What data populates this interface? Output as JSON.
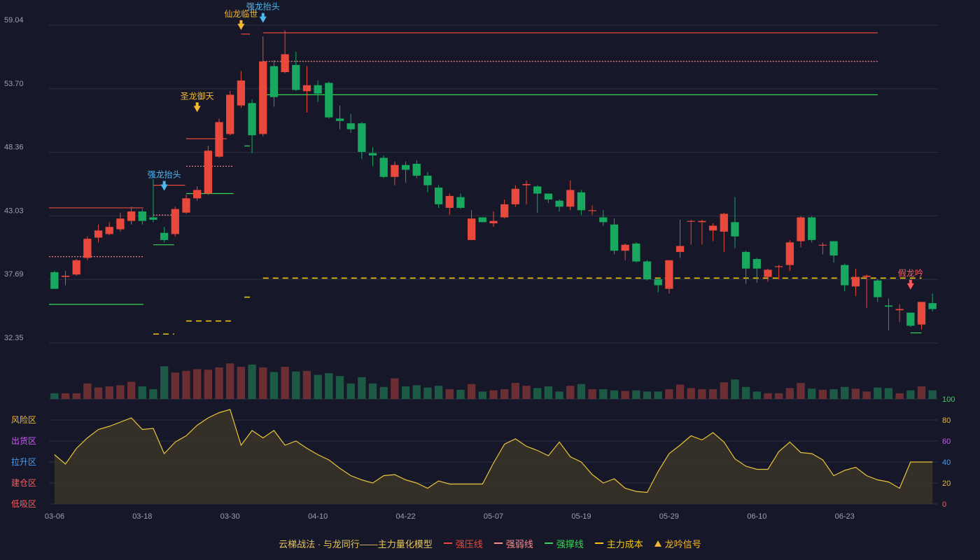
{
  "chart_data": {
    "type": "candlestick",
    "title": "",
    "colors": {
      "up": "#e8493c",
      "down": "#18a860",
      "resist": "#e8493c",
      "weak": "#ff8a8a",
      "support": "#39d353",
      "cost": "#f2c40f",
      "signal_gold": "#f2b632",
      "signal_blue": "#4cb8f0",
      "signal_red": "#ff5a5a",
      "oscillator": "#e8c43a"
    },
    "price_axis": {
      "ticks": [
        "59.04",
        "53.70",
        "48.36",
        "43.03",
        "37.69",
        "32.35"
      ],
      "ylim": [
        32.35,
        59.04
      ]
    },
    "x_ticks": [
      {
        "index": 0,
        "label": "03-06"
      },
      {
        "index": 8,
        "label": "03-18"
      },
      {
        "index": 16,
        "label": "03-30"
      },
      {
        "index": 24,
        "label": "04-10"
      },
      {
        "index": 32,
        "label": "04-22"
      },
      {
        "index": 40,
        "label": "05-07"
      },
      {
        "index": 48,
        "label": "05-19"
      },
      {
        "index": 56,
        "label": "05-29"
      },
      {
        "index": 64,
        "label": "06-10"
      },
      {
        "index": 72,
        "label": "06-23"
      }
    ],
    "candles": [
      [
        38.3,
        36.9,
        38.4,
        36.9
      ],
      [
        37.9,
        38.0,
        38.4,
        37.2
      ],
      [
        38.1,
        39.3,
        39.4,
        38.0
      ],
      [
        39.5,
        41.1,
        41.3,
        39.3
      ],
      [
        41.2,
        41.8,
        42.3,
        40.8
      ],
      [
        41.5,
        42.1,
        42.5,
        41.4
      ],
      [
        41.9,
        42.8,
        43.3,
        41.7
      ],
      [
        42.6,
        43.4,
        43.8,
        42.3
      ],
      [
        43.4,
        42.6,
        43.6,
        42.3
      ],
      [
        42.9,
        42.7,
        46.1,
        42.5
      ],
      [
        41.6,
        41.0,
        42.1,
        40.8
      ],
      [
        41.5,
        43.6,
        43.8,
        41.3
      ],
      [
        43.3,
        44.5,
        44.8,
        43.2
      ],
      [
        44.5,
        45.2,
        45.5,
        44.3
      ],
      [
        44.9,
        48.5,
        48.9,
        44.8
      ],
      [
        48.0,
        50.9,
        51.2,
        47.9
      ],
      [
        49.9,
        53.2,
        53.5,
        49.8
      ],
      [
        52.3,
        54.4,
        55.2,
        52.1
      ],
      [
        52.5,
        49.8,
        52.8,
        48.3
      ],
      [
        49.9,
        56.0,
        58.1,
        49.7
      ],
      [
        55.6,
        53.0,
        56.1,
        52.2
      ],
      [
        55.1,
        56.6,
        58.6,
        55.0
      ],
      [
        55.7,
        53.6,
        56.8,
        53.5
      ],
      [
        53.5,
        54.0,
        55.6,
        51.7
      ],
      [
        54.0,
        53.3,
        54.4,
        52.6
      ],
      [
        54.2,
        51.3,
        54.3,
        51.2
      ],
      [
        51.2,
        51.0,
        52.3,
        50.3
      ],
      [
        50.8,
        50.3,
        51.6,
        50.0
      ],
      [
        50.8,
        48.4,
        50.9,
        47.8
      ],
      [
        48.3,
        48.1,
        48.8,
        47.2
      ],
      [
        47.9,
        46.3,
        48.1,
        46.2
      ],
      [
        46.3,
        47.3,
        47.6,
        45.6
      ],
      [
        47.3,
        46.9,
        47.6,
        45.8
      ],
      [
        47.4,
        46.4,
        47.7,
        46.2
      ],
      [
        46.4,
        45.6,
        46.7,
        45.0
      ],
      [
        45.4,
        44.0,
        45.6,
        43.7
      ],
      [
        43.7,
        44.7,
        44.9,
        43.1
      ],
      [
        44.6,
        43.7,
        44.9,
        43.6
      ],
      [
        41.0,
        42.8,
        43.5,
        41.0
      ],
      [
        42.9,
        42.5,
        42.8,
        42.5
      ],
      [
        42.4,
        42.6,
        43.4,
        42.1
      ],
      [
        42.9,
        44.0,
        44.4,
        42.8
      ],
      [
        44.0,
        45.3,
        45.6,
        43.8
      ],
      [
        45.6,
        45.7,
        46.0,
        44.0
      ],
      [
        45.5,
        44.9,
        45.6,
        43.3
      ],
      [
        44.9,
        44.4,
        44.9,
        44.1
      ],
      [
        44.3,
        43.8,
        44.4,
        43.4
      ],
      [
        43.8,
        45.2,
        46.0,
        43.5
      ],
      [
        45.0,
        43.5,
        45.2,
        43.1
      ],
      [
        43.5,
        43.5,
        43.9,
        43.1
      ],
      [
        42.9,
        42.5,
        43.5,
        42.2
      ],
      [
        42.3,
        40.1,
        42.8,
        39.8
      ],
      [
        40.1,
        40.6,
        40.7,
        39.3
      ],
      [
        40.7,
        39.2,
        40.8,
        39.1
      ],
      [
        39.2,
        37.7,
        39.3,
        37.6
      ],
      [
        37.7,
        37.2,
        37.8,
        36.6
      ],
      [
        36.9,
        39.3,
        39.3,
        36.5
      ],
      [
        40.0,
        40.5,
        42.7,
        39.5
      ],
      [
        42.6,
        42.6,
        42.7,
        40.6
      ],
      [
        42.5,
        42.6,
        42.7,
        40.6
      ],
      [
        41.8,
        42.2,
        42.4,
        40.9
      ],
      [
        41.7,
        43.2,
        43.3,
        40.0
      ],
      [
        42.5,
        41.3,
        44.6,
        40.3
      ],
      [
        40.0,
        38.6,
        40.1,
        37.3
      ],
      [
        39.4,
        38.6,
        39.5,
        37.4
      ],
      [
        37.9,
        38.5,
        38.6,
        37.5
      ],
      [
        38.8,
        38.8,
        38.9,
        37.7
      ],
      [
        38.9,
        40.8,
        41.0,
        38.4
      ],
      [
        40.9,
        42.9,
        43.0,
        40.4
      ],
      [
        42.9,
        41.0,
        43.0,
        40.8
      ],
      [
        40.6,
        40.6,
        40.8,
        39.8
      ],
      [
        40.9,
        39.7,
        40.9,
        39.1
      ],
      [
        38.9,
        37.2,
        39.0,
        36.7
      ],
      [
        37.1,
        37.9,
        38.6,
        36.3
      ],
      [
        37.9,
        38.0,
        38.1,
        35.3
      ],
      [
        37.6,
        36.2,
        37.7,
        35.8
      ],
      [
        35.5,
        35.4,
        36.1,
        33.4
      ],
      [
        35.1,
        35.2,
        35.6,
        34.1
      ],
      [
        34.9,
        33.8,
        34.9,
        33.7
      ],
      [
        33.9,
        35.8,
        35.8,
        33.5
      ],
      [
        35.7,
        35.2,
        36.5,
        35.0
      ]
    ],
    "volume": [
      10,
      10,
      10,
      27,
      20,
      22,
      24,
      30,
      22,
      17,
      57,
      46,
      49,
      52,
      51,
      55,
      62,
      56,
      60,
      55,
      47,
      56,
      48,
      49,
      42,
      45,
      40,
      27,
      38,
      27,
      21,
      36,
      22,
      24,
      20,
      23,
      17,
      16,
      26,
      13,
      15,
      17,
      28,
      23,
      19,
      22,
      13,
      23,
      26,
      17,
      17,
      15,
      14,
      15,
      13,
      13,
      17,
      25,
      19,
      17,
      17,
      29,
      34,
      21,
      13,
      10,
      10,
      19,
      28,
      18,
      16,
      17,
      21,
      18,
      13,
      20,
      19,
      10,
      15,
      22,
      15
    ],
    "oscillator": {
      "ylim": [
        0,
        100
      ],
      "ticks": [
        0,
        20,
        40,
        60,
        80,
        100
      ],
      "zones": [
        "风险区",
        "出货区",
        "拉升区",
        "建仓区",
        "低吸区"
      ],
      "values": [
        47,
        38,
        53,
        63,
        71,
        74,
        78,
        82,
        71,
        72,
        48,
        59,
        65,
        75,
        82,
        87,
        90,
        56,
        70,
        63,
        70,
        56,
        60,
        53,
        47,
        42,
        34,
        27,
        23,
        20,
        27,
        28,
        23,
        20,
        15,
        22,
        19,
        19,
        19,
        19,
        39,
        57,
        62,
        55,
        51,
        46,
        59,
        45,
        40,
        28,
        20,
        24,
        15,
        12,
        11,
        31,
        48,
        56,
        65,
        61,
        68,
        59,
        43,
        36,
        33,
        33,
        50,
        59,
        49,
        48,
        42,
        27,
        32,
        35,
        27,
        23,
        21,
        15,
        40,
        40,
        40
      ]
    },
    "lines": {
      "resist": [
        {
          "x0": 0,
          "x1": 8.6,
          "y": 43.7
        },
        {
          "x0": 9.5,
          "x1": 12.4,
          "y": 45.6
        },
        {
          "x0": 12.5,
          "x1": 16.2,
          "y": 49.5
        },
        {
          "x0": 17.5,
          "x1": 18.3,
          "y": 58.3
        },
        {
          "x0": 19.5,
          "x1": 75.5,
          "y": 58.4
        }
      ],
      "weak": [
        {
          "x0": 0,
          "x1": 8.6,
          "y": 39.6
        },
        {
          "x0": 9.5,
          "x1": 11.7,
          "y": 43.1
        },
        {
          "x0": 12.5,
          "x1": 16.8,
          "y": 47.2
        },
        {
          "x0": 19.5,
          "x1": 75.5,
          "y": 56.0
        }
      ],
      "support": [
        {
          "x0": 0,
          "x1": 8.6,
          "y": 35.6
        },
        {
          "x0": 9.5,
          "x1": 11.4,
          "y": 40.6
        },
        {
          "x0": 12.5,
          "x1": 16.8,
          "y": 44.9
        },
        {
          "x0": 17.8,
          "x1": 18.3,
          "y": 48.9
        },
        {
          "x0": 19.5,
          "x1": 75.5,
          "y": 53.2
        },
        {
          "x0": 78.5,
          "x1": 79.5,
          "y": 33.2
        }
      ],
      "cost": [
        {
          "x0": 9.5,
          "x1": 11.4,
          "y": 33.1
        },
        {
          "x0": 12.5,
          "x1": 16.8,
          "y": 34.2
        },
        {
          "x0": 17.8,
          "x1": 18.3,
          "y": 36.2
        },
        {
          "x0": 19.5,
          "x1": 79.5,
          "y": 37.8
        }
      ]
    },
    "signals": [
      {
        "index": 10,
        "label": "强龙抬头",
        "color": "#4cb8f0",
        "price": 44.9
      },
      {
        "index": 13,
        "label": "圣龙御天",
        "color": "#f2b632",
        "price": 51.5
      },
      {
        "index": 17,
        "label": "仙龙临世",
        "color": "#f2b632",
        "price": 58.4
      },
      {
        "index": 19,
        "label": "强龙抬头",
        "color": "#4cb8f0",
        "price": 59.0
      },
      {
        "index": 78,
        "label": "假龙吟",
        "color": "#ff5a5a",
        "price": 36.6
      }
    ]
  },
  "footer": {
    "title": "云梯战法 · 与龙同行——主力量化模型",
    "legend": [
      {
        "label": "强压线",
        "color": "#e8493c"
      },
      {
        "label": "强弱线",
        "color": "#ff8a8a"
      },
      {
        "label": "强撑线",
        "color": "#39d353"
      },
      {
        "label": "主力成本",
        "color": "#f2c40f"
      },
      {
        "label": "龙吟信号",
        "color": "#f2b632"
      }
    ]
  }
}
